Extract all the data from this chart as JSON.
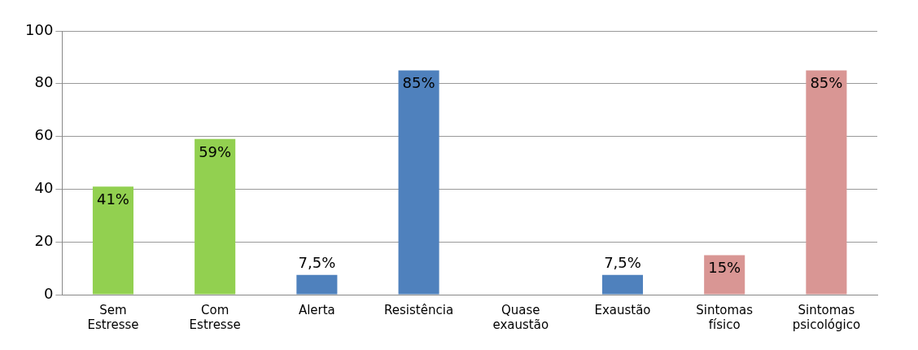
{
  "chart_data": {
    "type": "bar",
    "categories": [
      "Sem Estresse",
      "Com Estresse",
      "Alerta",
      "Resistência",
      "Quase exaustão",
      "Exaustão",
      "Sintomas físico",
      "Sintomas psicológico"
    ],
    "values": [
      41,
      59,
      7.5,
      85,
      0,
      7.5,
      15,
      85
    ],
    "value_labels": [
      "41%",
      "59%",
      "7,5%",
      "85%",
      null,
      "7,5%",
      "15%",
      "85%"
    ],
    "colors": [
      "#92d050",
      "#92d050",
      "#4f81bd",
      "#4f81bd",
      "#4f81bd",
      "#4f81bd",
      "#d99694",
      "#d99694"
    ],
    "ylim": [
      0,
      100
    ],
    "yticks": [
      0,
      20,
      40,
      60,
      80,
      100
    ],
    "grid": "y",
    "legend": false
  }
}
